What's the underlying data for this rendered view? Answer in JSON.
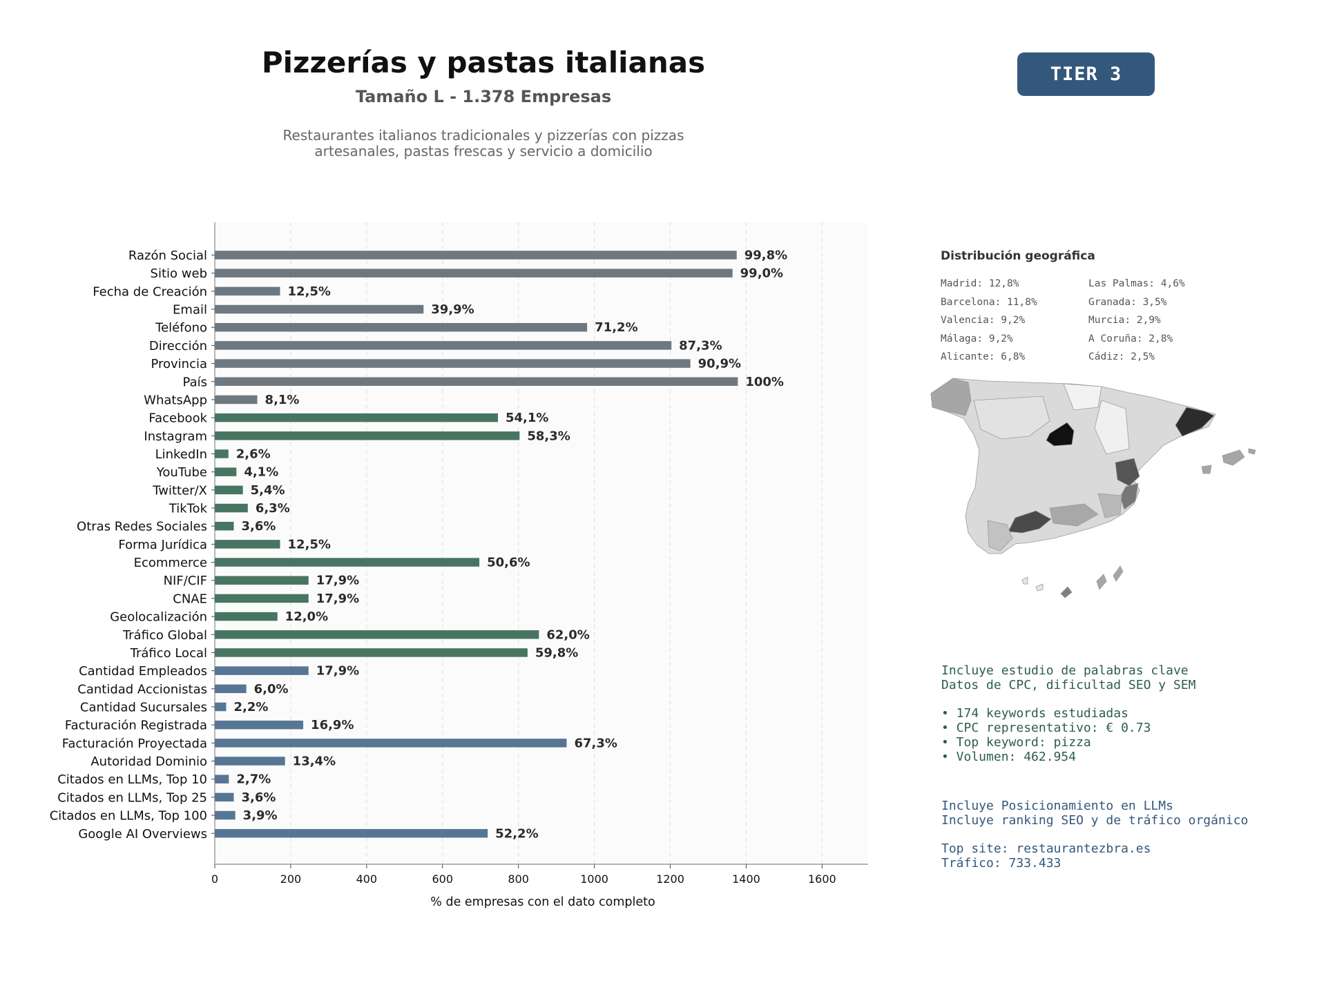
{
  "header": {
    "title": "Pizzerías y pastas italianas",
    "subtitle": "Tamaño L - 1.378 Empresas",
    "description_line1": "Restaurantes italianos tradicionales y pizzerías con pizzas",
    "description_line2": "artesanales, pastas frescas y servicio a domicilio",
    "tier_badge": "TIER 3"
  },
  "colors": {
    "gray": "#6e7880",
    "green": "#477561",
    "blue": "#577694",
    "tier_badge": "#34587c",
    "keywords_text": "#2d5e4c",
    "llm_text": "#34587c"
  },
  "chart_data": {
    "type": "bar",
    "orientation": "horizontal",
    "xlabel": "% de empresas con el dato completo",
    "xlim": [
      0,
      1720
    ],
    "xticks": [
      0,
      200,
      400,
      600,
      800,
      1000,
      1200,
      1400,
      1600
    ],
    "grid": "vertical dashed",
    "categories": [
      "Razón Social",
      "Sitio web",
      "Fecha de Creación",
      "Email",
      "Teléfono",
      "Dirección",
      "Provincia",
      "País",
      "WhatsApp",
      "Facebook",
      "Instagram",
      "LinkedIn",
      "YouTube",
      "Twitter/X",
      "TikTok",
      "Otras Redes Sociales",
      "Forma Jurídica",
      "Ecommerce",
      "NIF/CIF",
      "CNAE",
      "Geolocalización",
      "Tráfico Global",
      "Tráfico Local",
      "Cantidad Empleados",
      "Cantidad Accionistas",
      "Cantidad Sucursales",
      "Facturación Registrada",
      "Facturación Proyectada",
      "Autoridad Dominio",
      "Citados en LLMs, Top 10",
      "Citados en LLMs, Top 25",
      "Citados en LLMs, Top 100",
      "Google AI Overviews"
    ],
    "values": [
      1375,
      1364,
      172,
      550,
      981,
      1203,
      1253,
      1378,
      112,
      746,
      803,
      36,
      57,
      74,
      87,
      50,
      172,
      697,
      247,
      247,
      165,
      854,
      824,
      247,
      83,
      30,
      233,
      927,
      185,
      37,
      50,
      54,
      719
    ],
    "labels": [
      "99,8%",
      "99,0%",
      "12,5%",
      "39,9%",
      "71,2%",
      "87,3%",
      "90,9%",
      "100%",
      "8,1%",
      "54,1%",
      "58,3%",
      "2,6%",
      "4,1%",
      "5,4%",
      "6,3%",
      "3,6%",
      "12,5%",
      "50,6%",
      "17,9%",
      "17,9%",
      "12,0%",
      "62,0%",
      "59,8%",
      "17,9%",
      "6,0%",
      "2,2%",
      "16,9%",
      "67,3%",
      "13,4%",
      "2,7%",
      "3,6%",
      "3,9%",
      "52,2%"
    ],
    "groups": [
      "gray",
      "gray",
      "gray",
      "gray",
      "gray",
      "gray",
      "gray",
      "gray",
      "gray",
      "green",
      "green",
      "green",
      "green",
      "green",
      "green",
      "green",
      "green",
      "green",
      "green",
      "green",
      "green",
      "green",
      "green",
      "blue",
      "blue",
      "blue",
      "blue",
      "blue",
      "blue",
      "blue",
      "blue",
      "blue",
      "blue"
    ]
  },
  "geo": {
    "title": "Distribución geográfica",
    "left": [
      "Madrid: 12,8%",
      "Barcelona: 11,8%",
      "Valencia: 9,2%",
      "Málaga: 9,2%",
      "Alicante: 6,8%"
    ],
    "right": [
      "Las Palmas: 4,6%",
      "Granada: 3,5%",
      "Murcia: 2,9%",
      "A Coruña: 2,8%",
      "Cádiz: 2,5%"
    ]
  },
  "keywords": {
    "line1": "Incluye estudio de palabras clave",
    "line2": "Datos de CPC, dificultad SEO y SEM",
    "bullet1": "• 174 keywords estudiadas",
    "bullet2": "• CPC representativo: € 0.73",
    "bullet3": "• Top keyword: pizza",
    "bullet4": "• Volumen: 462.954"
  },
  "llm": {
    "line1": "Incluye Posicionamiento en LLMs",
    "line2": "Incluye ranking SEO y de tráfico orgánico",
    "top_site": "Top site: restaurantezbra.es",
    "traffic": "Tráfico: 733.433"
  }
}
